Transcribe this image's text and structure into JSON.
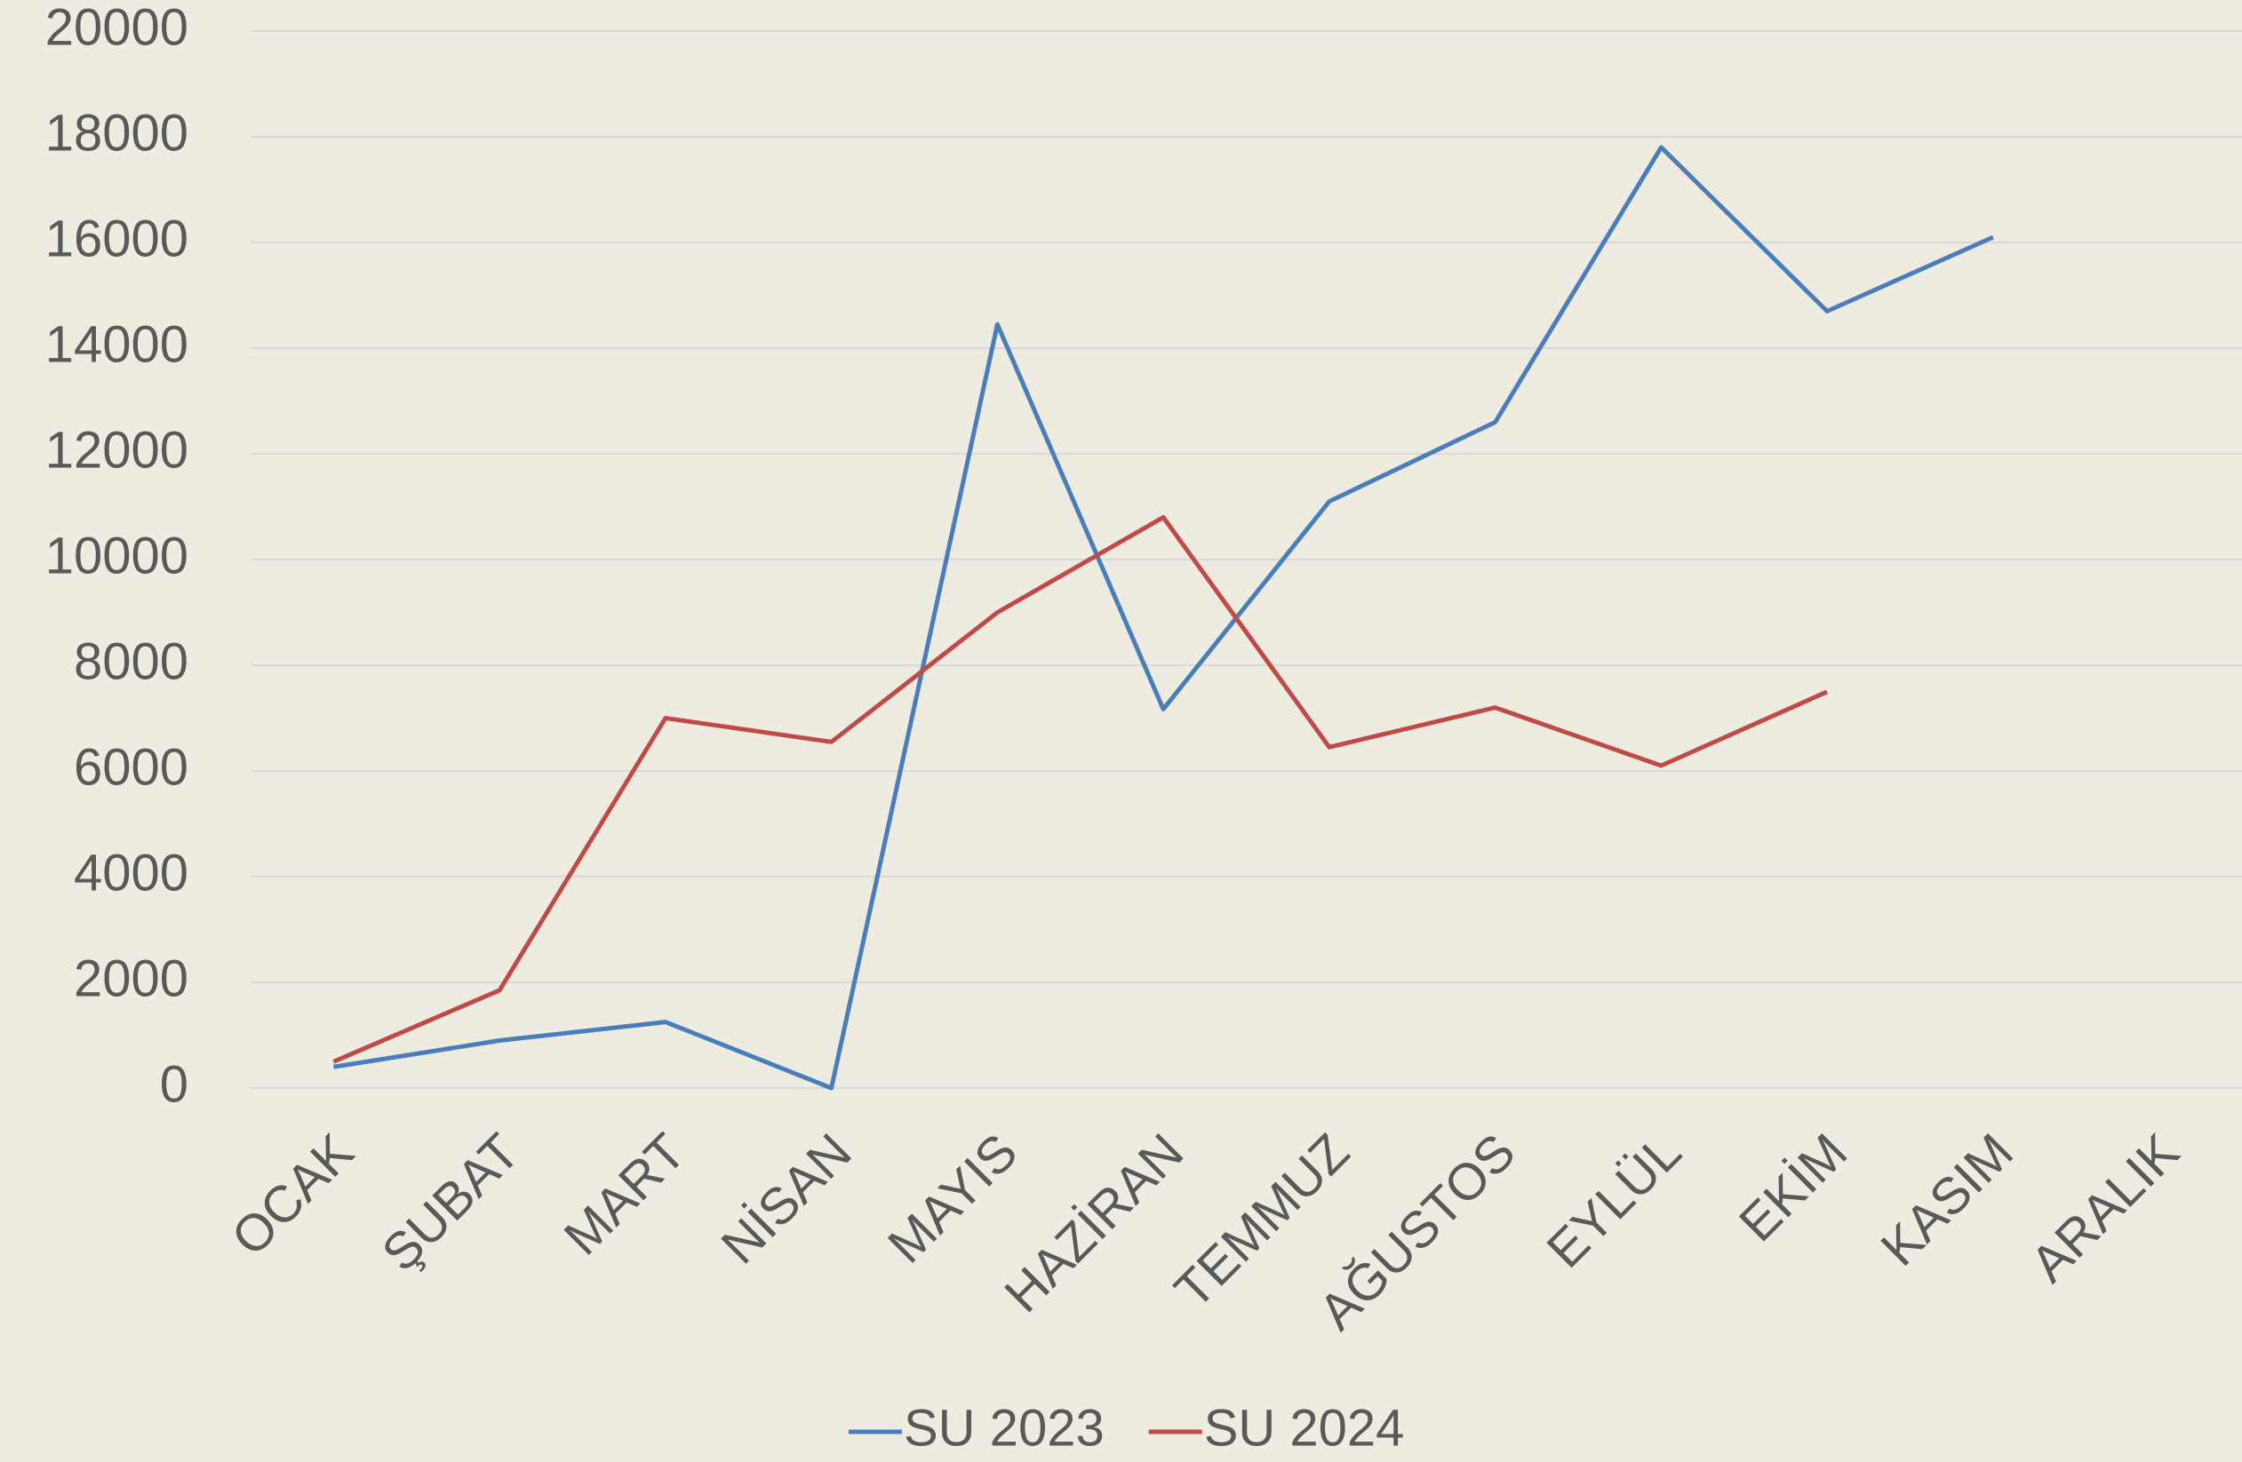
{
  "chart_data": {
    "type": "line",
    "categories": [
      "OCAK",
      "ŞUBAT",
      "MART",
      "NİSAN",
      "MAYIS",
      "HAZİRAN",
      "TEMMUZ",
      "AĞUSTOS",
      "EYLÜL",
      "EKİM",
      "KASIM",
      "ARALIK"
    ],
    "series": [
      {
        "name": "SU 2023",
        "color": "#4a7ebb",
        "values": [
          400,
          900,
          1250,
          0,
          14450,
          7170,
          11100,
          12600,
          17800,
          14700,
          16100,
          null
        ]
      },
      {
        "name": "SU 2024",
        "color": "#be4b48",
        "values": [
          500,
          1850,
          7000,
          6550,
          9000,
          10800,
          6450,
          7200,
          6100,
          7500,
          null,
          null
        ]
      }
    ],
    "ylim": [
      0,
      20000
    ],
    "yticks": [
      0,
      2000,
      4000,
      6000,
      8000,
      10000,
      12000,
      14000,
      16000,
      18000,
      20000
    ],
    "grid": true,
    "legend": "bottom"
  }
}
